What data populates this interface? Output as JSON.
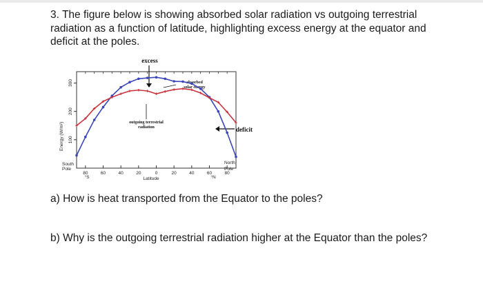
{
  "question": {
    "intro": "3. The figure below is showing absorbed solar radiation vs outgoing terrestrial radiation as a function of latitude, highlighting excess energy at the equator and deficit at the poles.",
    "part_a": "a) How is heat transported from the Equator to the poles?",
    "part_b": "b) Why is the outgoing terrestrial radiation higher at the Equator than the poles?"
  },
  "figure": {
    "label_excess": "excess",
    "label_deficit": "deficit",
    "label_absorbed_1": "absorbed",
    "label_absorbed_2": "solar energy",
    "label_outgoing_1": "outgoing terrestrial",
    "label_outgoing_2": "radiation",
    "south_pole_1": "South",
    "south_pole_2": "Pole",
    "north_pole_1": "North",
    "north_pole_2": "Pole",
    "unit_south": "°S",
    "unit_north": "°N"
  },
  "chart_data": {
    "type": "line",
    "xlabel": "Latitude",
    "ylabel": "Energy (W/m²)",
    "x_tick_labels": [
      "80",
      "60",
      "40",
      "20",
      "0",
      "20",
      "40",
      "60",
      "80"
    ],
    "y_tick_labels": [
      "100",
      "200",
      "300"
    ],
    "ylim": [
      0,
      340
    ],
    "x": [
      -90,
      -80,
      -70,
      -60,
      -50,
      -40,
      -30,
      -20,
      -10,
      0,
      10,
      20,
      30,
      40,
      50,
      60,
      70,
      80,
      90
    ],
    "series": [
      {
        "name": "absorbed solar energy",
        "color": "#3a46b8",
        "values": [
          45,
          110,
          170,
          215,
          255,
          285,
          303,
          315,
          318,
          320,
          315,
          306,
          305,
          298,
          280,
          250,
          200,
          125,
          40
        ]
      },
      {
        "name": "outgoing terrestrial radiation",
        "color": "#c8323c",
        "values": [
          150,
          175,
          210,
          235,
          250,
          262,
          272,
          275,
          272,
          262,
          270,
          277,
          280,
          276,
          265,
          248,
          232,
          198,
          160
        ]
      }
    ]
  }
}
